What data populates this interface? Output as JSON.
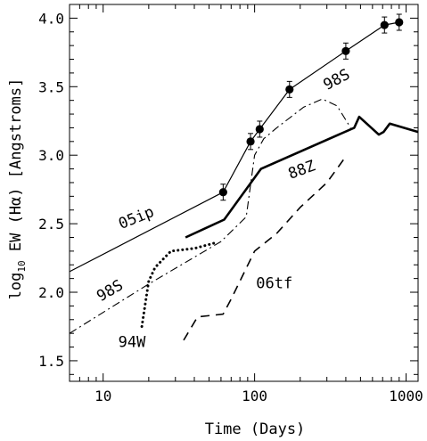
{
  "chart_data": {
    "type": "line",
    "xlabel": "Time (Days)",
    "ylabel_prefix": "log",
    "ylabel_sub": "10",
    "ylabel_main": " EW (Hα) [Angstroms]",
    "xscale": "log",
    "xlim": [
      6,
      1200
    ],
    "ylim": [
      1.35,
      4.1
    ],
    "x_ticks": [
      10,
      100,
      1000
    ],
    "x_tick_labels": [
      "10",
      "100",
      "1000"
    ],
    "y_ticks": [
      1.5,
      2.0,
      2.5,
      3.0,
      3.5,
      4.0
    ],
    "y_tick_labels": [
      "1.5",
      "2.0",
      "2.5",
      "3.0",
      "3.5",
      "4.0"
    ],
    "grid": false,
    "series": [
      {
        "name": "05ip",
        "style": "solid-thin",
        "x": [
          6,
          62,
          94,
          108,
          170,
          400,
          720,
          900
        ],
        "y": [
          2.15,
          2.73,
          3.1,
          3.19,
          3.48,
          3.76,
          3.95,
          3.97
        ],
        "markers": true,
        "marker_x": [
          62,
          94,
          108,
          170,
          400,
          720,
          900
        ],
        "marker_y": [
          2.73,
          3.1,
          3.19,
          3.48,
          3.76,
          3.95,
          3.97
        ]
      },
      {
        "name": "88Z",
        "style": "solid-thick",
        "x": [
          35,
          63,
          110,
          455,
          490,
          660,
          710,
          780,
          1200
        ],
        "y": [
          2.4,
          2.53,
          2.9,
          3.2,
          3.28,
          3.15,
          3.17,
          3.23,
          3.17
        ],
        "markers": false
      },
      {
        "name": "98S",
        "style": "dash-dot",
        "x": [
          6,
          20,
          60,
          88,
          100,
          115,
          140,
          210,
          280,
          350,
          430
        ],
        "y": [
          1.7,
          2.06,
          2.37,
          2.55,
          3.0,
          3.12,
          3.2,
          3.35,
          3.41,
          3.36,
          3.2
        ],
        "markers": false
      },
      {
        "name": "94W",
        "style": "dotted",
        "x": [
          18,
          20,
          22,
          28,
          40,
          55
        ],
        "y": [
          1.75,
          2.08,
          2.18,
          2.3,
          2.32,
          2.36
        ],
        "markers": false
      },
      {
        "name": "06tf",
        "style": "dashed",
        "x": [
          34,
          42,
          62,
          70,
          100,
          140,
          200,
          300,
          400
        ],
        "y": [
          1.65,
          1.82,
          1.84,
          1.95,
          2.3,
          2.43,
          2.62,
          2.8,
          2.99
        ],
        "markers": false
      }
    ],
    "annotations": [
      {
        "text": "05ip",
        "x": 17,
        "y": 2.51,
        "rotate": -22
      },
      {
        "text": "98S",
        "x": 11.5,
        "y": 1.98,
        "rotate": -30
      },
      {
        "text": "94W",
        "x": 15.5,
        "y": 1.6,
        "rotate": 0
      },
      {
        "text": "88Z",
        "x": 210,
        "y": 2.86,
        "rotate": -20
      },
      {
        "text": "06tf",
        "x": 135,
        "y": 2.03,
        "rotate": 0
      },
      {
        "text": "98S",
        "x": 360,
        "y": 3.52,
        "rotate": -28
      }
    ]
  }
}
